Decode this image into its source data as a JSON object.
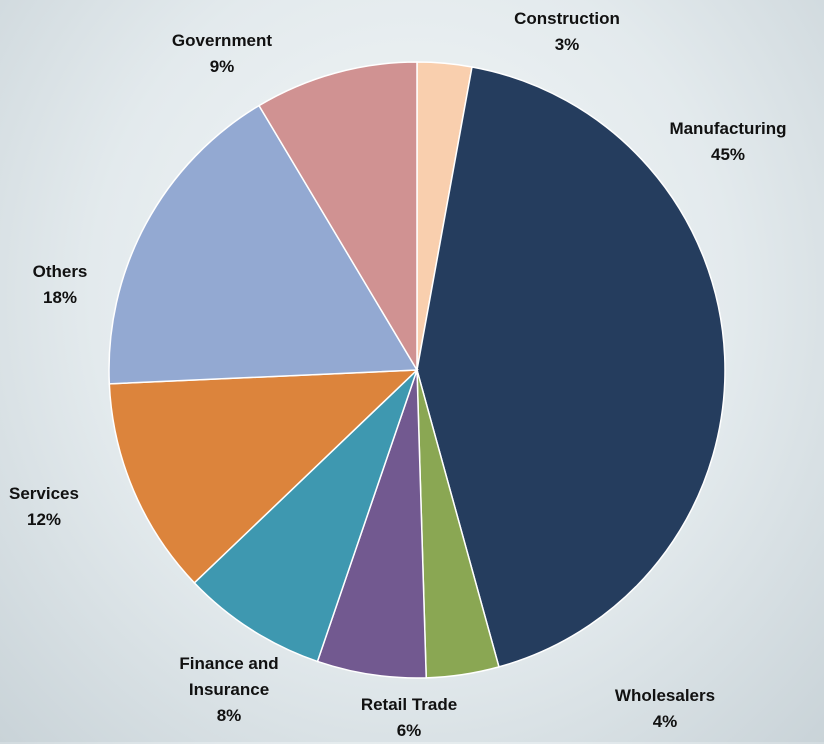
{
  "chart_data": {
    "type": "pie",
    "categories": [
      "Construction",
      "Manufacturing",
      "Wholesalers",
      "Retail Trade",
      "Finance and Insurance",
      "Services",
      "Others",
      "Government"
    ],
    "values": [
      3,
      45,
      4,
      6,
      8,
      12,
      18,
      9
    ],
    "value_labels": [
      "3%",
      "45%",
      "4%",
      "6%",
      "8%",
      "12%",
      "18%",
      "9%"
    ],
    "colors": [
      "#f9cfae",
      "#253d5e",
      "#8aa753",
      "#725990",
      "#3e98b0",
      "#dc843c",
      "#93a9d2",
      "#d09292"
    ]
  }
}
